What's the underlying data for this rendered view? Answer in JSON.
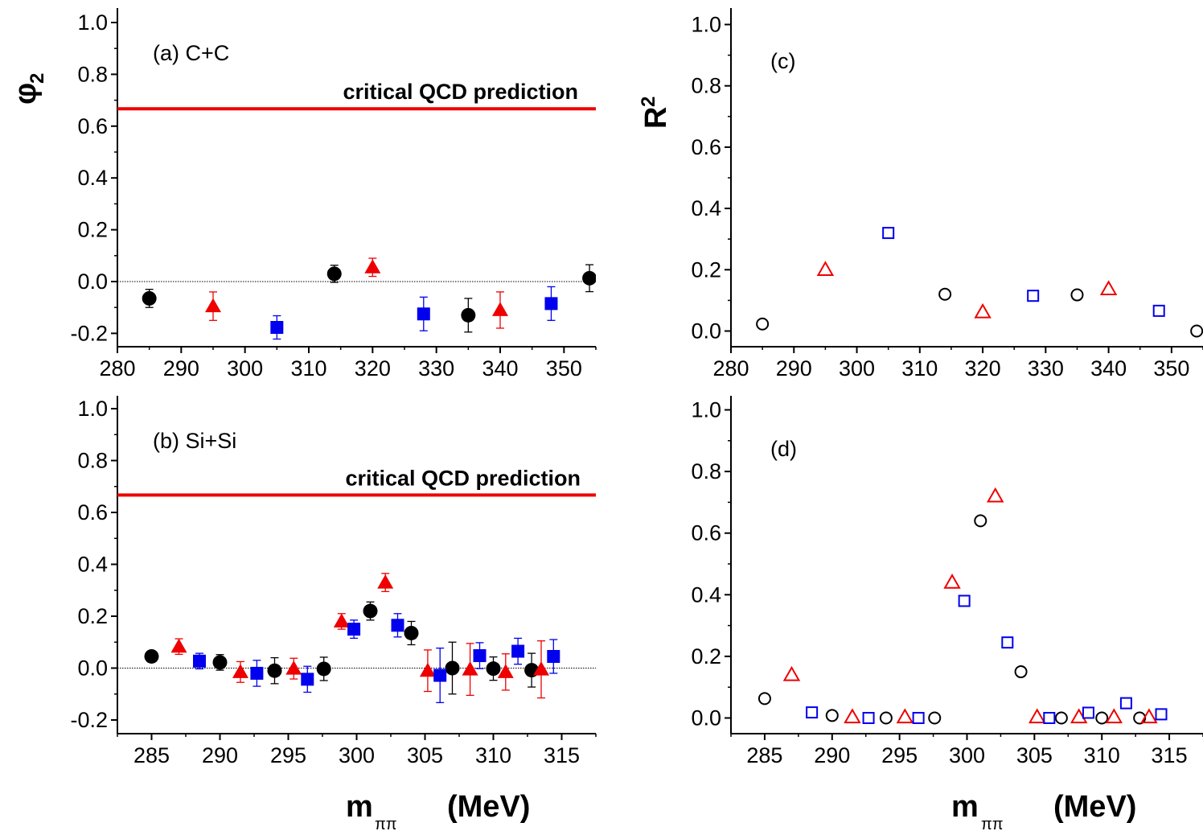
{
  "colors": {
    "black": "#000000",
    "red": "#ee0000",
    "blue": "#0000ee",
    "reference_line": "#ee0000"
  },
  "x_axis_label": {
    "main": "m",
    "subscript": "ππ",
    "unit": "(MeV)"
  },
  "chart_data": [
    {
      "id": "a",
      "type": "scatter",
      "panel_label": "(a) C+C",
      "ylabel": "φ",
      "ylabel_sub": "2",
      "reference_line": {
        "y": 0.667,
        "label": "critical  QCD  prediction"
      },
      "zero_line": true,
      "xlim": [
        280,
        355
      ],
      "ylim": [
        -0.25,
        1.05
      ],
      "xticks": [
        280,
        290,
        300,
        310,
        320,
        330,
        340,
        350
      ],
      "yticks": [
        -0.2,
        0.0,
        0.2,
        0.4,
        0.6,
        0.8,
        1.0
      ],
      "ytick_labels": [
        "-0.2",
        "0.0",
        "0.2",
        "0.4",
        "0.6",
        "0.8",
        "1.0"
      ],
      "filled": true,
      "series": [
        {
          "color": "#000000",
          "marker": "circle",
          "points": [
            [
              285,
              -0.065,
              0.035
            ],
            [
              314,
              0.03,
              0.033
            ],
            [
              335,
              -0.13,
              0.065
            ],
            [
              354,
              0.013,
              0.052
            ]
          ]
        },
        {
          "color": "#ee0000",
          "marker": "triangle",
          "points": [
            [
              295,
              -0.095,
              0.055
            ],
            [
              320,
              0.055,
              0.035
            ],
            [
              340,
              -0.11,
              0.07
            ]
          ]
        },
        {
          "color": "#0000ee",
          "marker": "square",
          "points": [
            [
              305,
              -0.177,
              0.045
            ],
            [
              328,
              -0.125,
              0.065
            ],
            [
              348,
              -0.085,
              0.065
            ]
          ]
        }
      ]
    },
    {
      "id": "b",
      "type": "scatter",
      "panel_label": "(b) Si+Si",
      "reference_line": {
        "y": 0.667,
        "label": "critical  QCD  prediction"
      },
      "zero_line": true,
      "xlim": [
        282.5,
        317.5
      ],
      "ylim": [
        -0.25,
        1.05
      ],
      "xticks": [
        285,
        290,
        295,
        300,
        305,
        310,
        315
      ],
      "yticks": [
        -0.2,
        0.0,
        0.2,
        0.4,
        0.6,
        0.8,
        1.0
      ],
      "ytick_labels": [
        "-0.2",
        "0.0",
        "0.2",
        "0.4",
        "0.6",
        "0.8",
        "1.0"
      ],
      "filled": true,
      "series": [
        {
          "color": "#000000",
          "marker": "circle",
          "points": [
            [
              285,
              0.045,
              0.02
            ],
            [
              290,
              0.022,
              0.03
            ],
            [
              294,
              -0.01,
              0.05
            ],
            [
              297.6,
              -0.003,
              0.045
            ],
            [
              301,
              0.22,
              0.035
            ],
            [
              304,
              0.135,
              0.045
            ],
            [
              307,
              0.0,
              0.1
            ],
            [
              310,
              -0.002,
              0.045
            ],
            [
              312.8,
              -0.008,
              0.065
            ]
          ]
        },
        {
          "color": "#ee0000",
          "marker": "triangle",
          "points": [
            [
              287,
              0.083,
              0.03
            ],
            [
              291.5,
              -0.015,
              0.04
            ],
            [
              295.4,
              -0.002,
              0.04
            ],
            [
              298.9,
              0.18,
              0.03
            ],
            [
              302.1,
              0.33,
              0.035
            ],
            [
              305.2,
              -0.01,
              0.08
            ],
            [
              308.3,
              -0.005,
              0.1
            ],
            [
              310.9,
              -0.015,
              0.07
            ],
            [
              313.5,
              -0.005,
              0.11
            ]
          ]
        },
        {
          "color": "#0000ee",
          "marker": "square",
          "points": [
            [
              288.5,
              0.027,
              0.03
            ],
            [
              292.7,
              -0.02,
              0.05
            ],
            [
              296.4,
              -0.043,
              0.05
            ],
            [
              299.8,
              0.15,
              0.035
            ],
            [
              303,
              0.165,
              0.045
            ],
            [
              306.1,
              -0.028,
              0.105
            ],
            [
              309,
              0.048,
              0.05
            ],
            [
              311.8,
              0.065,
              0.05
            ],
            [
              314.4,
              0.045,
              0.065
            ]
          ]
        }
      ]
    },
    {
      "id": "c",
      "type": "scatter",
      "panel_label": "(c)",
      "ylabel": "R",
      "ylabel_sup": "2",
      "xlim": [
        280,
        355
      ],
      "ylim": [
        -0.05,
        1.05
      ],
      "xticks": [
        280,
        290,
        300,
        310,
        320,
        330,
        340,
        350
      ],
      "yticks": [
        0.0,
        0.2,
        0.4,
        0.6,
        0.8,
        1.0
      ],
      "ytick_labels": [
        "0.0",
        "0.2",
        "0.4",
        "0.6",
        "0.8",
        "1.0"
      ],
      "filled": false,
      "series": [
        {
          "color": "#000000",
          "marker": "circle",
          "points": [
            [
              285,
              0.023
            ],
            [
              314,
              0.12
            ],
            [
              335,
              0.118
            ],
            [
              354,
              0.0
            ]
          ]
        },
        {
          "color": "#ee0000",
          "marker": "triangle",
          "points": [
            [
              295,
              0.2
            ],
            [
              320,
              0.062
            ],
            [
              340,
              0.137
            ]
          ]
        },
        {
          "color": "#0000ee",
          "marker": "square",
          "points": [
            [
              305,
              0.32
            ],
            [
              328,
              0.115
            ],
            [
              348,
              0.066
            ]
          ]
        }
      ]
    },
    {
      "id": "d",
      "type": "scatter",
      "panel_label": "(d)",
      "xlim": [
        282.5,
        317.5
      ],
      "ylim": [
        -0.05,
        1.05
      ],
      "xticks": [
        285,
        290,
        295,
        300,
        305,
        310,
        315
      ],
      "yticks": [
        0.0,
        0.2,
        0.4,
        0.6,
        0.8,
        1.0
      ],
      "ytick_labels": [
        "0.0",
        "0.2",
        "0.4",
        "0.6",
        "0.8",
        "1.0"
      ],
      "filled": false,
      "series": [
        {
          "color": "#000000",
          "marker": "circle",
          "points": [
            [
              285,
              0.063
            ],
            [
              290,
              0.008
            ],
            [
              294,
              0.0
            ],
            [
              297.6,
              0.0
            ],
            [
              301,
              0.64
            ],
            [
              304,
              0.15
            ],
            [
              307,
              0.0
            ],
            [
              310,
              0.0
            ],
            [
              312.8,
              0.0
            ]
          ]
        },
        {
          "color": "#ee0000",
          "marker": "triangle",
          "points": [
            [
              287,
              0.14
            ],
            [
              291.5,
              0.003
            ],
            [
              295.4,
              0.003
            ],
            [
              298.9,
              0.44
            ],
            [
              302.1,
              0.72
            ],
            [
              305.2,
              0.003
            ],
            [
              308.3,
              0.003
            ],
            [
              310.9,
              0.003
            ],
            [
              313.5,
              0.003
            ]
          ]
        },
        {
          "color": "#0000ee",
          "marker": "square",
          "points": [
            [
              288.5,
              0.018
            ],
            [
              292.7,
              0.0
            ],
            [
              296.4,
              0.0
            ],
            [
              299.8,
              0.38
            ],
            [
              303,
              0.245
            ],
            [
              306.1,
              0.0
            ],
            [
              309,
              0.017
            ],
            [
              311.8,
              0.048
            ],
            [
              314.4,
              0.012
            ]
          ]
        }
      ]
    }
  ]
}
